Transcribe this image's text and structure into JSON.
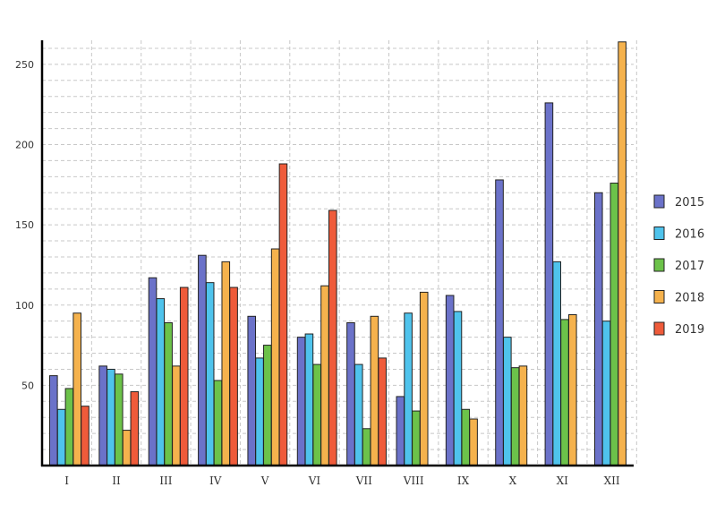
{
  "chart_data": {
    "type": "bar",
    "categories": [
      "I",
      "II",
      "III",
      "IV",
      "V",
      "VI",
      "VII",
      "VIII",
      "IX",
      "X",
      "XI",
      "XII"
    ],
    "series": [
      {
        "name": "2015",
        "color": "#6b72c9",
        "values": [
          56,
          62,
          117,
          131,
          93,
          80,
          89,
          43,
          106,
          178,
          226,
          170
        ]
      },
      {
        "name": "2016",
        "color": "#4fc3ec",
        "values": [
          35,
          60,
          104,
          114,
          67,
          82,
          63,
          95,
          96,
          80,
          127,
          90
        ]
      },
      {
        "name": "2017",
        "color": "#6cc24a",
        "values": [
          48,
          57,
          89,
          53,
          75,
          63,
          23,
          34,
          35,
          61,
          91,
          176
        ]
      },
      {
        "name": "2018",
        "color": "#f5b24d",
        "values": [
          95,
          22,
          62,
          127,
          135,
          112,
          93,
          108,
          29,
          62,
          94,
          264
        ]
      },
      {
        "name": "2019",
        "color": "#ef5b3a",
        "values": [
          37,
          46,
          111,
          111,
          188,
          159,
          67,
          null,
          null,
          null,
          null,
          null
        ]
      }
    ],
    "y_ticks": [
      50,
      100,
      150,
      200,
      250
    ],
    "ylim": [
      0,
      265
    ],
    "grid": true,
    "legend_position": "right",
    "title": "",
    "xlabel": "",
    "ylabel": ""
  }
}
